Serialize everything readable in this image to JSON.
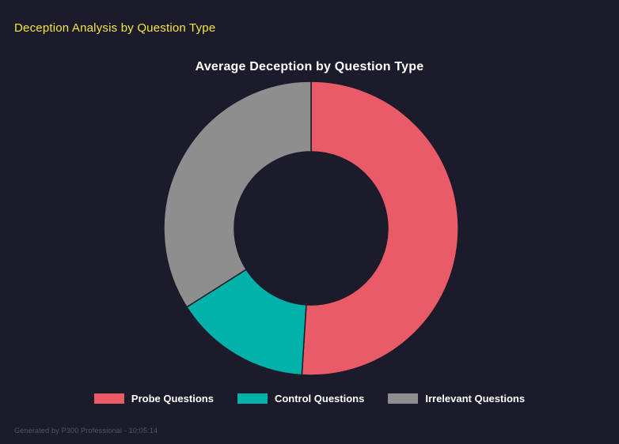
{
  "header": {
    "title": "Deception Analysis by Question Type"
  },
  "chart_data": {
    "type": "pie",
    "subtype": "donut",
    "title": "Average Deception by Question Type",
    "labels": [
      "Probe Questions",
      "Control Questions",
      "Irrelevant Questions"
    ],
    "values": [
      51,
      15,
      34
    ],
    "colors": [
      "#ea5b68",
      "#00b2a9",
      "#8e8e8e"
    ],
    "legend_position": "bottom",
    "inner_radius_ratio": 0.52
  },
  "footer": {
    "text": "Generated by P300 Professional - 10:05:14"
  },
  "theme": {
    "background": "#1b1b2b",
    "accent_yellow": "#f5e642",
    "title_text": "#ffffff",
    "legend_text": "#ffffff",
    "footer_text": "#565668"
  }
}
